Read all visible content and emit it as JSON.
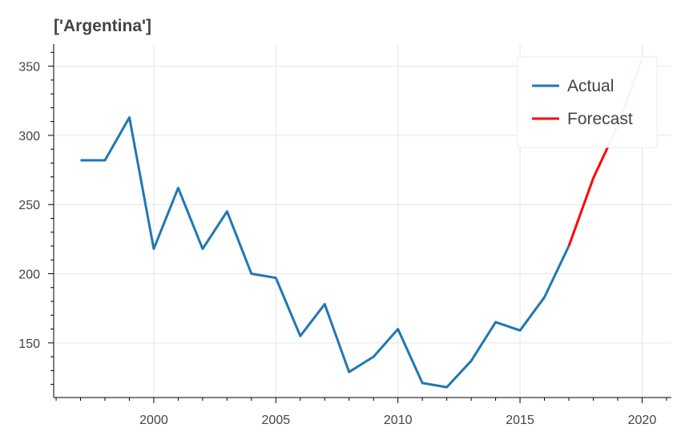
{
  "chart_data": {
    "type": "line",
    "title": "['Argentina']",
    "xlabel": "",
    "ylabel": "",
    "xlim": [
      1995.9,
      2021.2
    ],
    "ylim": [
      110.5,
      366
    ],
    "x_ticks": [
      2000,
      2005,
      2010,
      2015,
      2020
    ],
    "y_ticks": [
      150,
      200,
      250,
      300,
      350
    ],
    "grid": true,
    "legend_position": "top-right",
    "series": [
      {
        "name": "Actual",
        "color": "#1f77b4",
        "x": [
          1997,
          1998,
          1999,
          2000,
          2001,
          2002,
          2003,
          2004,
          2005,
          2006,
          2007,
          2008,
          2009,
          2010,
          2011,
          2012,
          2013,
          2014,
          2015,
          2016,
          2017
        ],
        "y": [
          282,
          282,
          313,
          218,
          262,
          218,
          245,
          200,
          197,
          155,
          178,
          129,
          140,
          160,
          121,
          118,
          137,
          165,
          159,
          183,
          220
        ]
      },
      {
        "name": "Forecast",
        "color": "#ff0000",
        "x": [
          2017,
          2018,
          2019,
          2020
        ],
        "y": [
          220,
          269,
          307,
          355
        ]
      }
    ]
  }
}
